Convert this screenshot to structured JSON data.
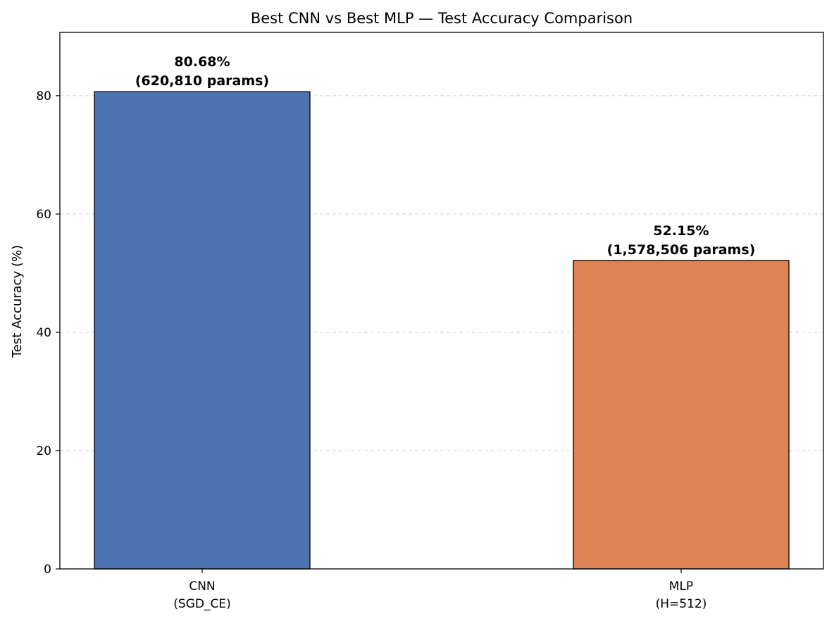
{
  "chart_data": {
    "type": "bar",
    "title": "Best CNN vs Best MLP — Test Accuracy Comparison",
    "xlabel": "",
    "ylabel": "Test Accuracy (%)",
    "ylim": [
      0,
      90.7
    ],
    "yticks": [
      0,
      20,
      40,
      60,
      80
    ],
    "grid": "y-dashed",
    "categories": [
      {
        "line1": "CNN",
        "line2": "(SGD_CE)"
      },
      {
        "line1": "MLP",
        "line2": "(H=512)"
      }
    ],
    "values": [
      80.68,
      52.15
    ],
    "data_labels": [
      {
        "line1": "80.68%",
        "line2": "(620,810 params)"
      },
      {
        "line1": "52.15%",
        "line2": "(1,578,506 params)"
      }
    ],
    "colors": [
      "#4c72b0",
      "#dd8452"
    ]
  }
}
